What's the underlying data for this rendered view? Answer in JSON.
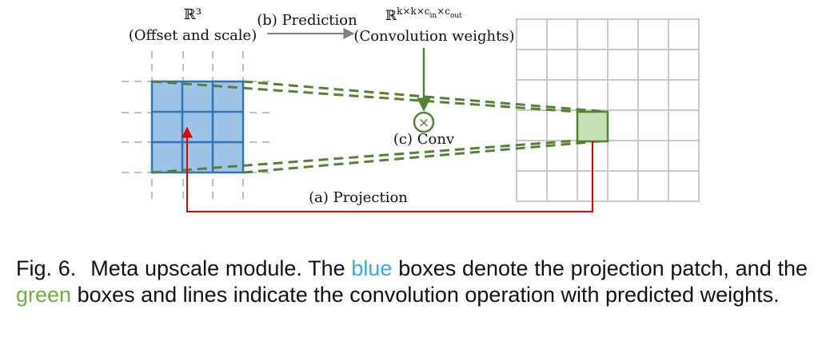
{
  "figure": {
    "top_left_math": "ℝ³",
    "top_left_label": "(Offset and scale)",
    "prediction_label": "(b) Prediction",
    "top_right_math_base": "ℝ",
    "top_right_math_sup": "k×k×c",
    "top_right_math_sub1": "in",
    "top_right_math_mid": "×c",
    "top_right_math_sub2": "out",
    "top_right_label": "(Convolution weights)",
    "conv_symbol": "×",
    "conv_label": "(c) Conv",
    "projection_label": "(a) Projection"
  },
  "caption": {
    "figure_number": "Fig. 6.",
    "text_part1": "Meta upscale module. The ",
    "blue_word": "blue",
    "text_part2": " boxes denote the projection patch, and the ",
    "green_word": "green",
    "text_part3": " boxes and lines indicate the convolution operation with predicted weights."
  },
  "colors": {
    "blue_patch_fill": "#9dc3e6",
    "blue_patch_stroke": "#2e75b6",
    "green_patch_fill": "#c5e0b4",
    "green_stroke": "#548235",
    "projection_red": "#e00000",
    "grid_gray": "#c8c8c8",
    "caption_blue": "#3ca8dd",
    "caption_green": "#70b040"
  }
}
